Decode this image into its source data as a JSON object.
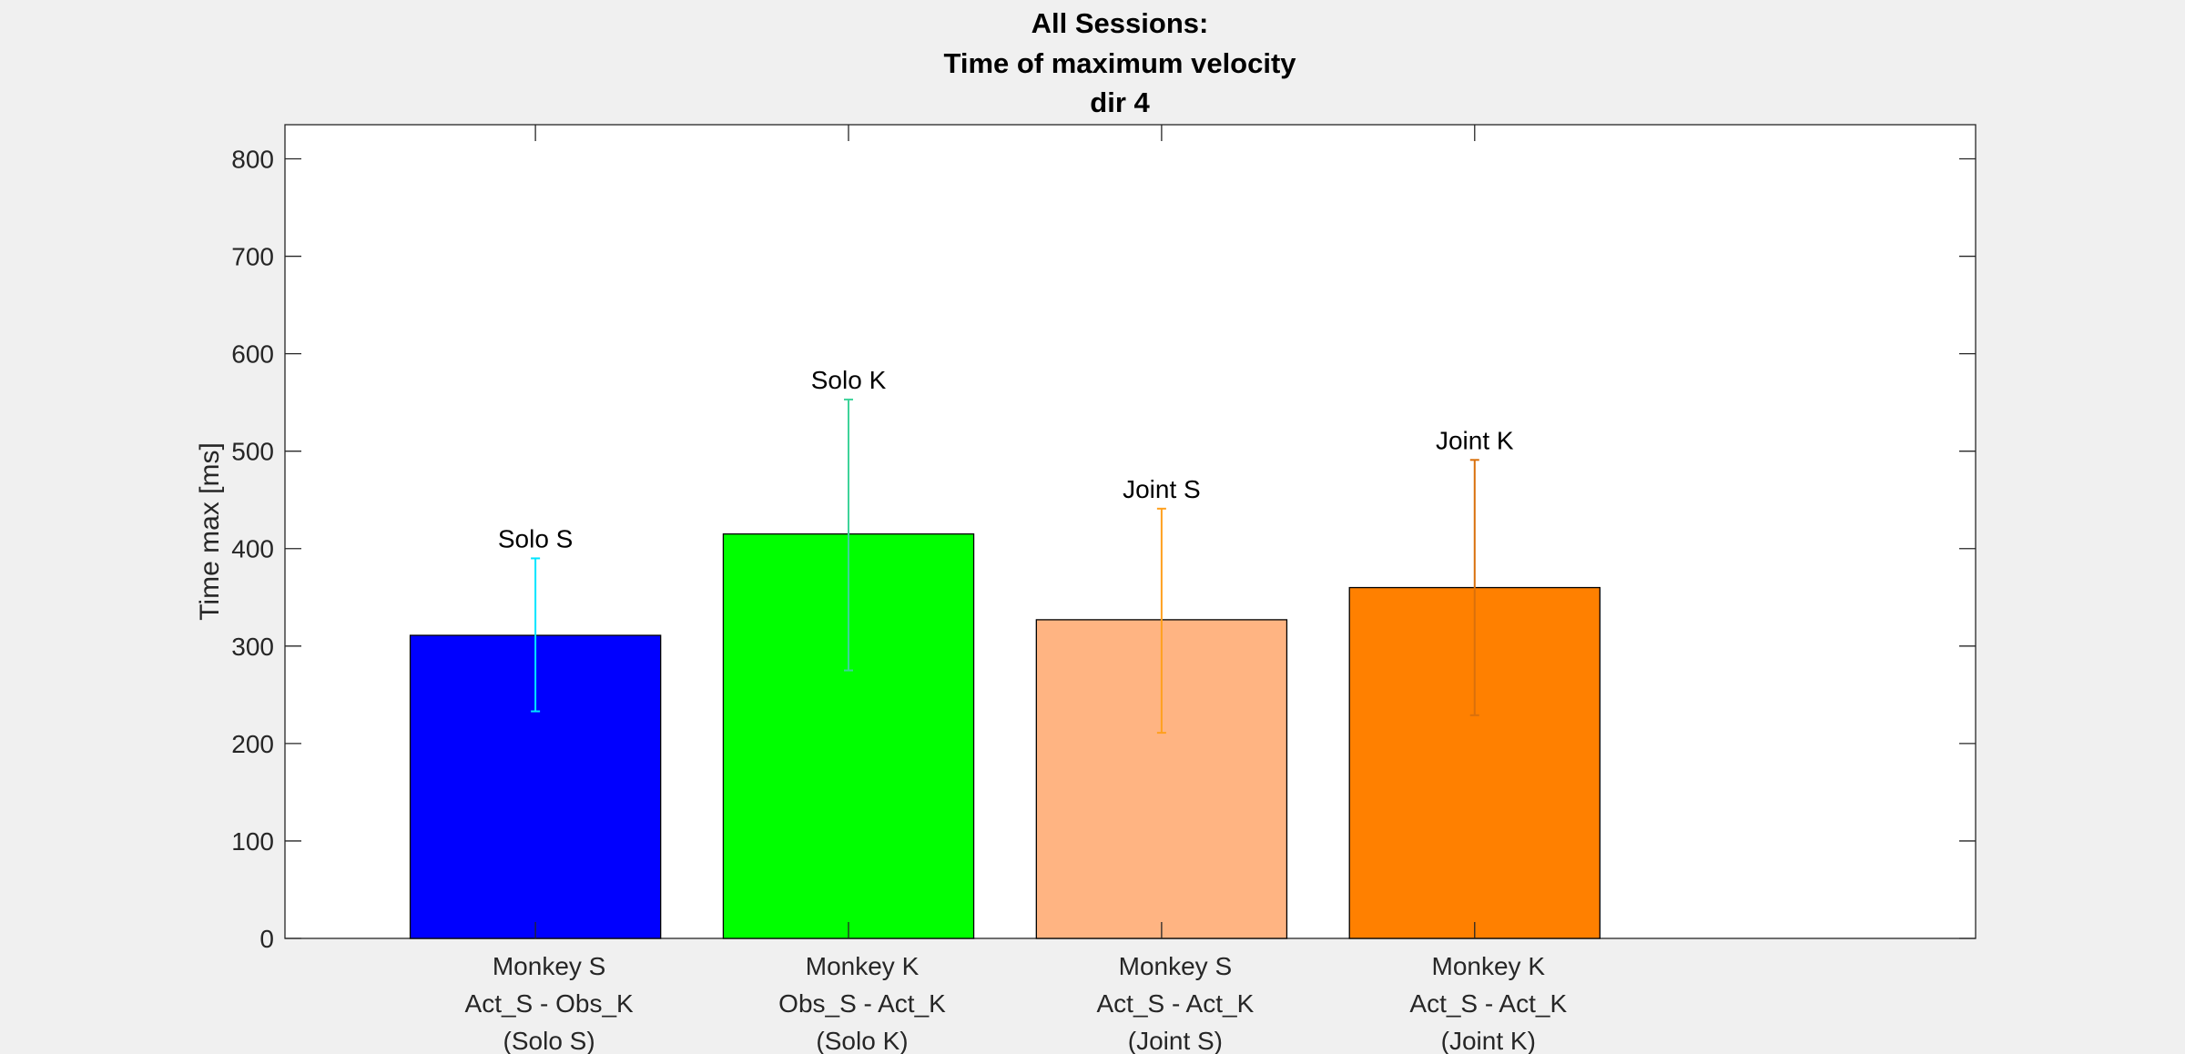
{
  "chart_data": {
    "type": "bar",
    "title": [
      "All Sessions:",
      "Time of maximum velocity",
      "dir 4"
    ],
    "ylabel": "Time max [ms]",
    "xlabel": "",
    "ylim": [
      0,
      835
    ],
    "xlim": [
      0.2,
      5.6
    ],
    "yticks": [
      0,
      100,
      200,
      300,
      400,
      500,
      600,
      700,
      800
    ],
    "grid": false,
    "categories": [
      [
        "Monkey S",
        "Act_S - Obs_K",
        "(Solo S)"
      ],
      [
        "Monkey K",
        "Obs_S - Act_K",
        "(Solo K)"
      ],
      [
        "Monkey S",
        "Act_S - Act_K",
        "(Joint S)"
      ],
      [
        "Monkey K",
        "Act_S - Act_K",
        "(Joint K)"
      ]
    ],
    "bars": [
      {
        "label": "Solo S",
        "value": 311,
        "err_low": 233,
        "err_high": 390,
        "color": "#0000ff",
        "err_color": "#00e5ff"
      },
      {
        "label": "Solo K",
        "value": 415,
        "err_low": 275,
        "err_high": 553,
        "color": "#00ff00",
        "err_color": "#3ed39a"
      },
      {
        "label": "Joint S",
        "value": 327,
        "err_low": 211,
        "err_high": 441,
        "color": "#ffb482",
        "err_color": "#ffa01e"
      },
      {
        "label": "Joint K",
        "value": 360,
        "err_low": 229,
        "err_high": 491,
        "color": "#ff8000",
        "err_color": "#d9700c"
      }
    ]
  }
}
